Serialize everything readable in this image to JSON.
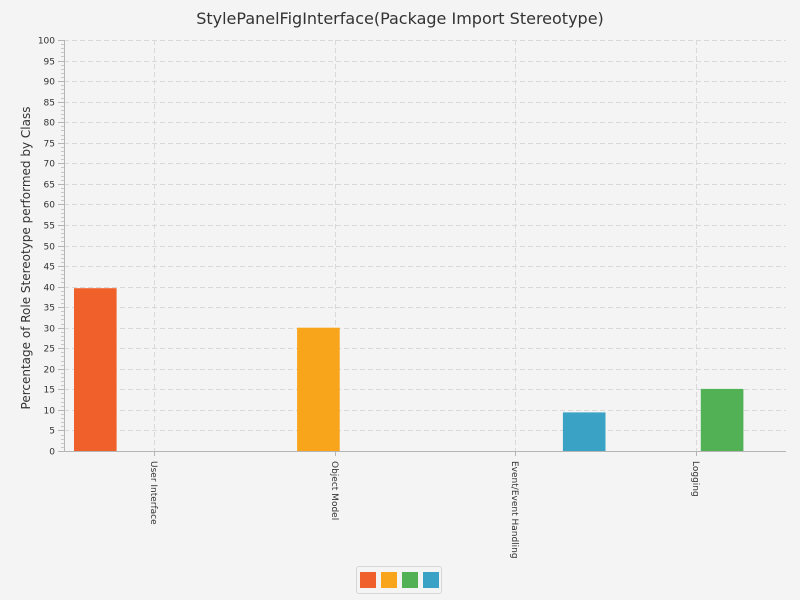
{
  "chart_data": {
    "type": "bar",
    "title": "StylePanelFigInterface(Package Import Stereotype)",
    "xlabel": "",
    "ylabel": "Percentage of Role Stereotype performed by Class",
    "categories": [
      "User Interface",
      "Object Model",
      "Event/Event Handling",
      "Logging"
    ],
    "series": [
      {
        "values": [
          39.6,
          null,
          null,
          null
        ],
        "color": "#f0602a"
      },
      {
        "values": [
          null,
          30.0,
          null,
          null
        ],
        "color": "#f8a51b"
      },
      {
        "values": [
          null,
          null,
          null,
          15.1
        ],
        "color": "#52b155"
      },
      {
        "values": [
          null,
          null,
          9.4,
          null
        ],
        "color": "#3aa3c5"
      }
    ],
    "ylim": [
      0,
      100
    ],
    "yticks": [
      "0",
      "5",
      "10",
      "15",
      "20",
      "25",
      "30",
      "35",
      "40",
      "45",
      "50",
      "55",
      "60",
      "65",
      "70",
      "75",
      "80",
      "85",
      "90",
      "95",
      "100"
    ],
    "grid": true,
    "legend_position": "bottom",
    "legend_entries": [
      {
        "color": "#f0602a"
      },
      {
        "color": "#f8a51b"
      },
      {
        "color": "#52b155"
      },
      {
        "color": "#3aa3c5"
      }
    ]
  }
}
